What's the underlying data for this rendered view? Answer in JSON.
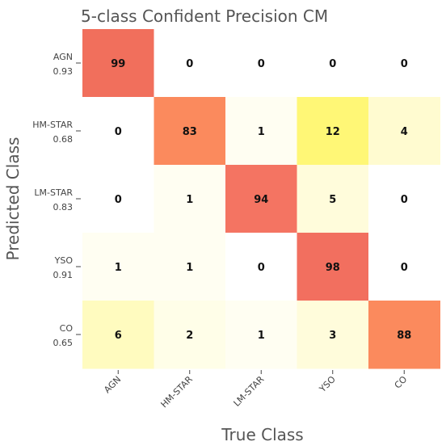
{
  "chart_data": {
    "type": "heatmap",
    "title": "5-class Confident Precision CM",
    "xlabel": "True Class",
    "ylabel": "Predicted Class",
    "x_categories": [
      "AGN",
      "HM-STAR",
      "LM-STAR",
      "YSO",
      "CO"
    ],
    "y_categories": [
      "AGN",
      "HM-STAR",
      "LM-STAR",
      "YSO",
      "CO"
    ],
    "y_secondary_labels": [
      "0.93",
      "0.68",
      "0.83",
      "0.91",
      "0.65"
    ],
    "values": [
      [
        99,
        0,
        0,
        0,
        0
      ],
      [
        0,
        83,
        1,
        12,
        4
      ],
      [
        0,
        1,
        94,
        5,
        0
      ],
      [
        1,
        1,
        0,
        98,
        0
      ],
      [
        6,
        2,
        1,
        3,
        88
      ]
    ],
    "colors": [
      [
        "#f16f5c",
        "#ffffff",
        "#ffffff",
        "#ffffff",
        "#ffffff"
      ],
      [
        "#ffffff",
        "#fb8a5d",
        "#fffef2",
        "#fff776",
        "#fffbd0"
      ],
      [
        "#ffffff",
        "#fffef2",
        "#f47462",
        "#fffcdb",
        "#ffffff"
      ],
      [
        "#fffef2",
        "#fffef2",
        "#ffffff",
        "#f26f5f",
        "#ffffff"
      ],
      [
        "#fffbbf",
        "#fffee8",
        "#fffef2",
        "#fffcdb",
        "#fb8a5d"
      ]
    ]
  }
}
